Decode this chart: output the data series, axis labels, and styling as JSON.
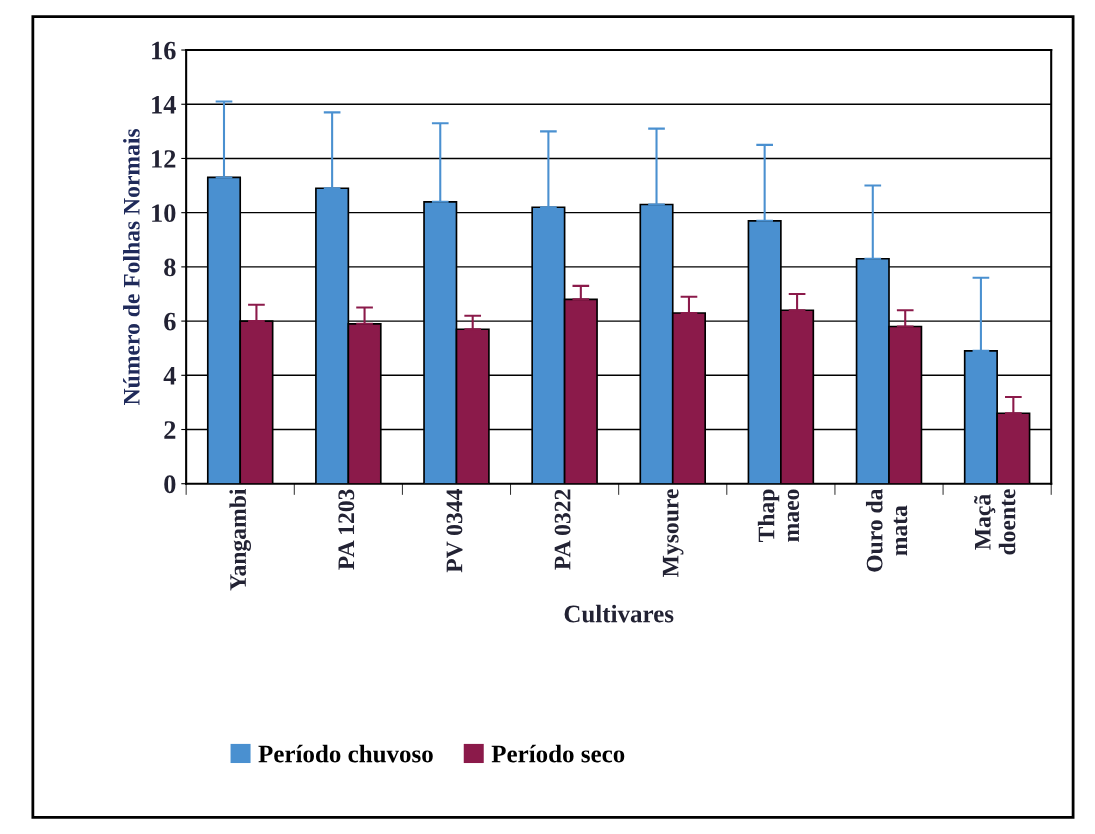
{
  "chart_data": {
    "type": "bar",
    "xlabel": "Cultivares",
    "ylabel": "Número de Folhas Normais",
    "categories": [
      "Yangambi",
      "PA 1203",
      "PV 0344",
      "PA 0322",
      "Mysoure",
      "Thap\nmaeo",
      "Ouro da\nmata",
      "Maçã\ndoente"
    ],
    "series": [
      {
        "name": "Período chuvoso",
        "color": "#4a90d0",
        "values": [
          11.3,
          10.9,
          10.4,
          10.2,
          10.3,
          9.7,
          8.3,
          4.9
        ],
        "errors": [
          [
            11.3,
            14.1
          ],
          [
            10.9,
            13.7
          ],
          [
            10.4,
            13.3
          ],
          [
            10.2,
            13.0
          ],
          [
            10.3,
            13.1
          ],
          [
            9.7,
            12.5
          ],
          [
            8.3,
            11.0
          ],
          [
            4.9,
            7.6
          ]
        ]
      },
      {
        "name": "Período seco",
        "color": "#8b1a4a",
        "values": [
          6.0,
          5.9,
          5.7,
          6.8,
          6.3,
          6.4,
          5.8,
          2.6
        ],
        "errors": [
          [
            6.0,
            6.6
          ],
          [
            5.9,
            6.5
          ],
          [
            5.7,
            6.2
          ],
          [
            6.8,
            7.3
          ],
          [
            6.3,
            6.9
          ],
          [
            6.4,
            7.0
          ],
          [
            5.8,
            6.4
          ],
          [
            2.6,
            3.2
          ]
        ]
      }
    ],
    "ylim": [
      0,
      16
    ],
    "yticks": [
      0,
      2,
      4,
      6,
      8,
      10,
      12,
      14,
      16
    ],
    "grid": "y",
    "legend": "bottom"
  }
}
